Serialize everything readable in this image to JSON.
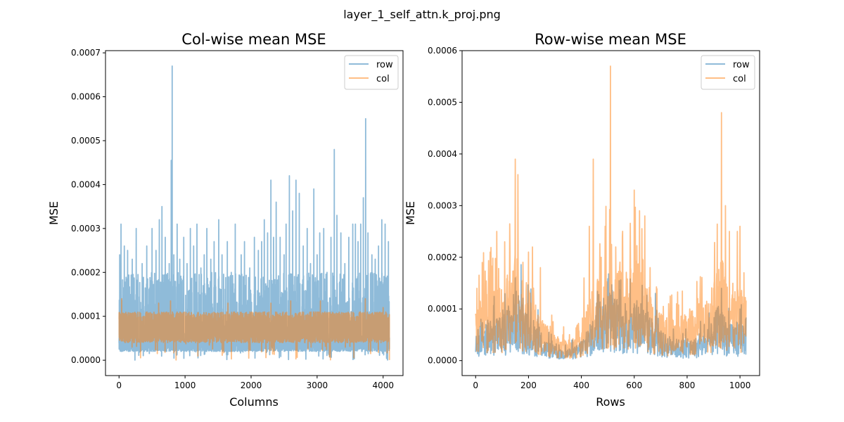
{
  "figure": {
    "suptitle": "layer_1_self_attn.k_proj.png"
  },
  "colors": {
    "row": "#1f77b4",
    "col": "#ff7f0e",
    "row_alpha": 0.5,
    "col_alpha": 0.5
  },
  "chart_data": [
    {
      "type": "line",
      "title": "Col-wise mean MSE",
      "xlabel": "Columns",
      "ylabel": "MSE",
      "xlim": [
        -205,
        4301
      ],
      "ylim": [
        -3.5e-05,
        0.000705
      ],
      "xticks": [
        0,
        1000,
        2000,
        3000,
        4000
      ],
      "xtick_labels": [
        "0",
        "1000",
        "2000",
        "3000",
        "4000"
      ],
      "yticks": [
        0,
        0.0001,
        0.0002,
        0.0003,
        0.0004,
        0.0005,
        0.0006,
        0.0007
      ],
      "ytick_labels": [
        "0.0000",
        "0.0001",
        "0.0002",
        "0.0003",
        "0.0004",
        "0.0005",
        "0.0006",
        "0.0007"
      ],
      "grid": false,
      "legend": "top-right",
      "n_points": 4096,
      "series": [
        {
          "name": "row",
          "color": "#1f77b4",
          "baseline": [
            2e-05,
            5e-05
          ],
          "typical_peak": 0.0002,
          "peaks": [
            [
              10,
              0.00024
            ],
            [
              30,
              0.00031
            ],
            [
              80,
              0.00026
            ],
            [
              130,
              0.00025
            ],
            [
              200,
              0.00023
            ],
            [
              260,
              0.0003
            ],
            [
              350,
              0.00022
            ],
            [
              420,
              0.00026
            ],
            [
              500,
              0.0003
            ],
            [
              560,
              0.00025
            ],
            [
              610,
              0.00032
            ],
            [
              650,
              0.00035
            ],
            [
              700,
              0.00028
            ],
            [
              760,
              0.00022
            ],
            [
              790,
              0.000455
            ],
            [
              805,
              0.00067
            ],
            [
              830,
              0.00024
            ],
            [
              880,
              0.00031
            ],
            [
              920,
              0.00023
            ],
            [
              980,
              0.00028
            ],
            [
              1030,
              0.00022
            ],
            [
              1080,
              0.0003
            ],
            [
              1130,
              0.00026
            ],
            [
              1180,
              0.00031
            ],
            [
              1240,
              0.00021
            ],
            [
              1290,
              0.00024
            ],
            [
              1330,
              0.0003
            ],
            [
              1390,
              0.00023
            ],
            [
              1440,
              0.00027
            ],
            [
              1510,
              0.00032
            ],
            [
              1560,
              0.00024
            ],
            [
              1640,
              0.00027
            ],
            [
              1700,
              0.0002
            ],
            [
              1760,
              0.00031
            ],
            [
              1850,
              0.00024
            ],
            [
              1900,
              0.00027
            ],
            [
              1980,
              0.00021
            ],
            [
              2050,
              0.00028
            ],
            [
              2110,
              0.00025
            ],
            [
              2160,
              0.00027
            ],
            [
              2200,
              0.00032
            ],
            [
              2250,
              0.00029
            ],
            [
              2300,
              0.00041
            ],
            [
              2340,
              0.00028
            ],
            [
              2380,
              0.00036
            ],
            [
              2440,
              0.00028
            ],
            [
              2500,
              0.00024
            ],
            [
              2530,
              0.00031
            ],
            [
              2580,
              0.00042
            ],
            [
              2630,
              0.00034
            ],
            [
              2680,
              0.00041
            ],
            [
              2730,
              0.00038
            ],
            [
              2790,
              0.00026
            ],
            [
              2850,
              0.0003
            ],
            [
              2900,
              0.00022
            ],
            [
              2950,
              0.00039
            ],
            [
              3000,
              0.00024
            ],
            [
              3040,
              0.00029
            ],
            [
              3100,
              0.0003
            ],
            [
              3150,
              0.0002
            ],
            [
              3210,
              0.00028
            ],
            [
              3260,
              0.00048
            ],
            [
              3300,
              0.00033
            ],
            [
              3360,
              0.00029
            ],
            [
              3420,
              0.00022
            ],
            [
              3480,
              0.00028
            ],
            [
              3540,
              0.00031
            ],
            [
              3580,
              0.00031
            ],
            [
              3620,
              0.00027
            ],
            [
              3660,
              0.00031
            ],
            [
              3700,
              0.00037
            ],
            [
              3735,
              0.00055
            ],
            [
              3770,
              0.00029
            ],
            [
              3830,
              0.00024
            ],
            [
              3880,
              0.00023
            ],
            [
              3930,
              0.00026
            ],
            [
              3980,
              0.00032
            ],
            [
              4030,
              0.00031
            ],
            [
              4080,
              0.00027
            ]
          ]
        },
        {
          "name": "col",
          "color": "#ff7f0e",
          "baseline": [
            4e-05,
            9e-05
          ],
          "typical_peak": 0.00011,
          "peaks": [
            [
              40,
              0.00014
            ],
            [
              600,
              0.00013
            ],
            [
              780,
              0.000135
            ],
            [
              1650,
              0.00013
            ],
            [
              2300,
              0.00013
            ],
            [
              2600,
              0.000135
            ],
            [
              3050,
              0.000135
            ],
            [
              3730,
              0.00014
            ],
            [
              4000,
              0.00012
            ]
          ]
        }
      ]
    },
    {
      "type": "line",
      "title": "Row-wise mean MSE",
      "xlabel": "Rows",
      "ylabel": "MSE",
      "xlim": [
        -51.2,
        1074.2
      ],
      "ylim": [
        -2.9e-05,
        0.0006
      ],
      "xticks": [
        0,
        200,
        400,
        600,
        800,
        1000
      ],
      "xtick_labels": [
        "0",
        "200",
        "400",
        "600",
        "800",
        "1000"
      ],
      "yticks": [
        0,
        0.0001,
        0.0002,
        0.0003,
        0.0004,
        0.0005,
        0.0006
      ],
      "ytick_labels": [
        "0.0000",
        "0.0001",
        "0.0002",
        "0.0003",
        "0.0004",
        "0.0005",
        "0.0006"
      ],
      "grid": false,
      "legend": "top-right",
      "n_points": 1024,
      "series": [
        {
          "name": "row",
          "color": "#1f77b4",
          "envelope": [
            [
              0,
              4e-05
            ],
            [
              40,
              6e-05
            ],
            [
              100,
              6e-05
            ],
            [
              150,
              0.0001
            ],
            [
              200,
              7e-05
            ],
            [
              260,
              3e-05
            ],
            [
              320,
              1.5e-05
            ],
            [
              380,
              2e-05
            ],
            [
              420,
              4e-05
            ],
            [
              470,
              8e-05
            ],
            [
              510,
              0.0001
            ],
            [
              560,
              7e-05
            ],
            [
              600,
              9e-05
            ],
            [
              650,
              7e-05
            ],
            [
              700,
              4e-05
            ],
            [
              760,
              3e-05
            ],
            [
              820,
              3e-05
            ],
            [
              880,
              4e-05
            ],
            [
              920,
              8e-05
            ],
            [
              960,
              5e-05
            ],
            [
              1023,
              6e-05
            ]
          ],
          "peaks": [
            [
              20,
              8e-05
            ],
            [
              150,
              0.00016
            ],
            [
              505,
              0.00013
            ],
            [
              600,
              0.00011
            ],
            [
              625,
              0.00011
            ],
            [
              680,
              0.00013
            ],
            [
              930,
              0.00014
            ],
            [
              1000,
              0.0001
            ]
          ]
        },
        {
          "name": "col",
          "color": "#ff7f0e",
          "envelope": [
            [
              0,
              8e-05
            ],
            [
              40,
              0.0001
            ],
            [
              100,
              0.0001
            ],
            [
              150,
              0.00015
            ],
            [
              200,
              0.0001
            ],
            [
              260,
              5e-05
            ],
            [
              320,
              3e-05
            ],
            [
              380,
              3e-05
            ],
            [
              410,
              6e-05
            ],
            [
              460,
              0.00012
            ],
            [
              510,
              0.00015
            ],
            [
              560,
              0.00012
            ],
            [
              600,
              0.00015
            ],
            [
              650,
              0.0001
            ],
            [
              700,
              6e-05
            ],
            [
              760,
              6e-05
            ],
            [
              820,
              7e-05
            ],
            [
              880,
              8e-05
            ],
            [
              930,
              0.00015
            ],
            [
              980,
              0.0001
            ],
            [
              1023,
              0.0001
            ]
          ],
          "peaks": [
            [
              5,
              0.00014
            ],
            [
              25,
              0.00019
            ],
            [
              55,
              0.00021
            ],
            [
              80,
              0.00025
            ],
            [
              110,
              0.00023
            ],
            [
              130,
              0.00021
            ],
            [
              150,
              0.00039
            ],
            [
              160,
              0.00036
            ],
            [
              200,
              0.00021
            ],
            [
              215,
              0.00022
            ],
            [
              245,
              0.00018
            ],
            [
              290,
              6e-05
            ],
            [
              330,
              5e-05
            ],
            [
              375,
              4e-05
            ],
            [
              410,
              0.00016
            ],
            [
              430,
              0.00026
            ],
            [
              445,
              0.00039
            ],
            [
              475,
              0.0002
            ],
            [
              490,
              0.00026
            ],
            [
              510,
              0.00057
            ],
            [
              530,
              0.00022
            ],
            [
              555,
              0.00024
            ],
            [
              600,
              0.00033
            ],
            [
              620,
              0.00029
            ],
            [
              640,
              0.00028
            ],
            [
              660,
              0.00018
            ],
            [
              700,
              6e-05
            ],
            [
              730,
              0.00011
            ],
            [
              760,
              0.00011
            ],
            [
              810,
              0.0001
            ],
            [
              840,
              0.00012
            ],
            [
              880,
              0.00011
            ],
            [
              900,
              0.00014
            ],
            [
              930,
              0.00048
            ],
            [
              945,
              0.0003
            ],
            [
              960,
              0.00025
            ],
            [
              990,
              0.00025
            ],
            [
              1000,
              0.00026
            ],
            [
              1015,
              0.00017
            ]
          ]
        }
      ]
    }
  ]
}
